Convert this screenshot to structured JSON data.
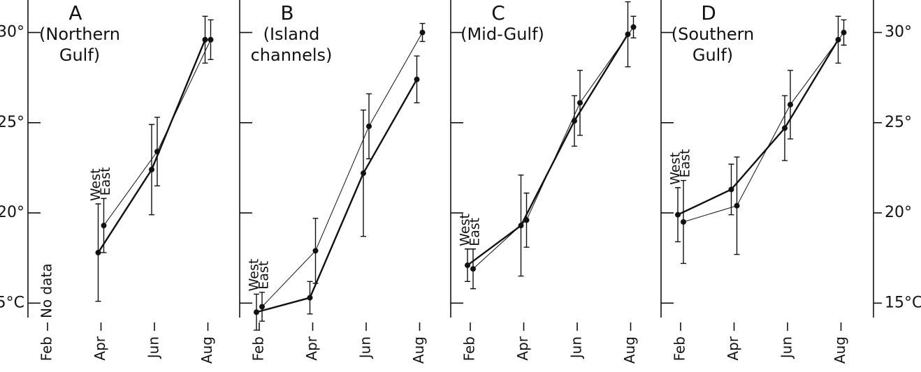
{
  "chart_data": [
    {
      "type": "line",
      "title": "A",
      "subtitle": [
        "(Northern",
        "Gulf)"
      ],
      "annotation": "No data",
      "categories": [
        "Feb",
        "Apr",
        "Jun",
        "Aug"
      ],
      "series": [
        {
          "name": "West",
          "color": "#111111",
          "linewidth": 2.4,
          "values": [
            null,
            17.8,
            22.4,
            29.6
          ],
          "errors": [
            null,
            2.7,
            2.5,
            1.3
          ]
        },
        {
          "name": "East",
          "color": "#111111",
          "linewidth": 1,
          "values": [
            null,
            19.3,
            23.4,
            29.6
          ],
          "errors": [
            null,
            1.5,
            1.9,
            1.1
          ]
        }
      ],
      "ylim": [
        14.2,
        31.8
      ],
      "yticks": [
        {
          "value": 15,
          "label": "15°C"
        },
        {
          "value": 20,
          "label": "20°"
        },
        {
          "value": 25,
          "label": "25°"
        },
        {
          "value": 30,
          "label": "30°"
        }
      ]
    },
    {
      "type": "line",
      "title": "B",
      "subtitle": [
        "(Island",
        "channels)"
      ],
      "categories": [
        "Feb",
        "Apr",
        "Jun",
        "Aug"
      ],
      "series": [
        {
          "name": "West",
          "color": "#111111",
          "linewidth": 2.4,
          "values": [
            14.5,
            15.3,
            22.2,
            27.4
          ],
          "errors": [
            1.0,
            0.9,
            3.5,
            1.3
          ]
        },
        {
          "name": "East",
          "color": "#111111",
          "linewidth": 1,
          "values": [
            14.8,
            17.9,
            24.8,
            30.0
          ],
          "errors": [
            0.8,
            1.8,
            1.8,
            0.5
          ]
        }
      ],
      "ylim": [
        14.2,
        31.8
      ],
      "yticks": [
        15,
        20,
        25,
        30
      ]
    },
    {
      "type": "line",
      "title": "C",
      "subtitle": [
        "(Mid-Gulf)"
      ],
      "categories": [
        "Feb",
        "Apr",
        "Jun",
        "Aug"
      ],
      "series": [
        {
          "name": "West",
          "color": "#111111",
          "linewidth": 2.4,
          "values": [
            17.1,
            19.3,
            25.1,
            29.9
          ],
          "errors": [
            0.9,
            2.8,
            1.4,
            1.8
          ]
        },
        {
          "name": "East",
          "color": "#111111",
          "linewidth": 1,
          "values": [
            16.9,
            19.6,
            26.1,
            30.3
          ],
          "errors": [
            1.1,
            1.5,
            1.8,
            0.6
          ]
        }
      ],
      "ylim": [
        14.2,
        31.8
      ],
      "yticks": [
        15,
        20,
        25,
        30
      ]
    },
    {
      "type": "line",
      "title": "D",
      "subtitle": [
        "(Southern",
        "Gulf)"
      ],
      "categories": [
        "Feb",
        "Apr",
        "Jun",
        "Aug"
      ],
      "series": [
        {
          "name": "West",
          "color": "#111111",
          "linewidth": 2.4,
          "values": [
            19.9,
            21.3,
            24.7,
            29.6
          ],
          "errors": [
            1.5,
            1.4,
            1.8,
            1.3
          ]
        },
        {
          "name": "East",
          "color": "#111111",
          "linewidth": 1,
          "values": [
            19.5,
            20.4,
            26.0,
            30.0
          ],
          "errors": [
            2.3,
            2.7,
            1.9,
            0.7
          ]
        }
      ],
      "ylim": [
        14.2,
        31.8
      ],
      "yticks": [
        {
          "value": 15,
          "label": "15°C"
        },
        {
          "value": 20,
          "label": "20°"
        },
        {
          "value": 25,
          "label": "25°"
        },
        {
          "value": 30,
          "label": "30°"
        }
      ]
    }
  ]
}
